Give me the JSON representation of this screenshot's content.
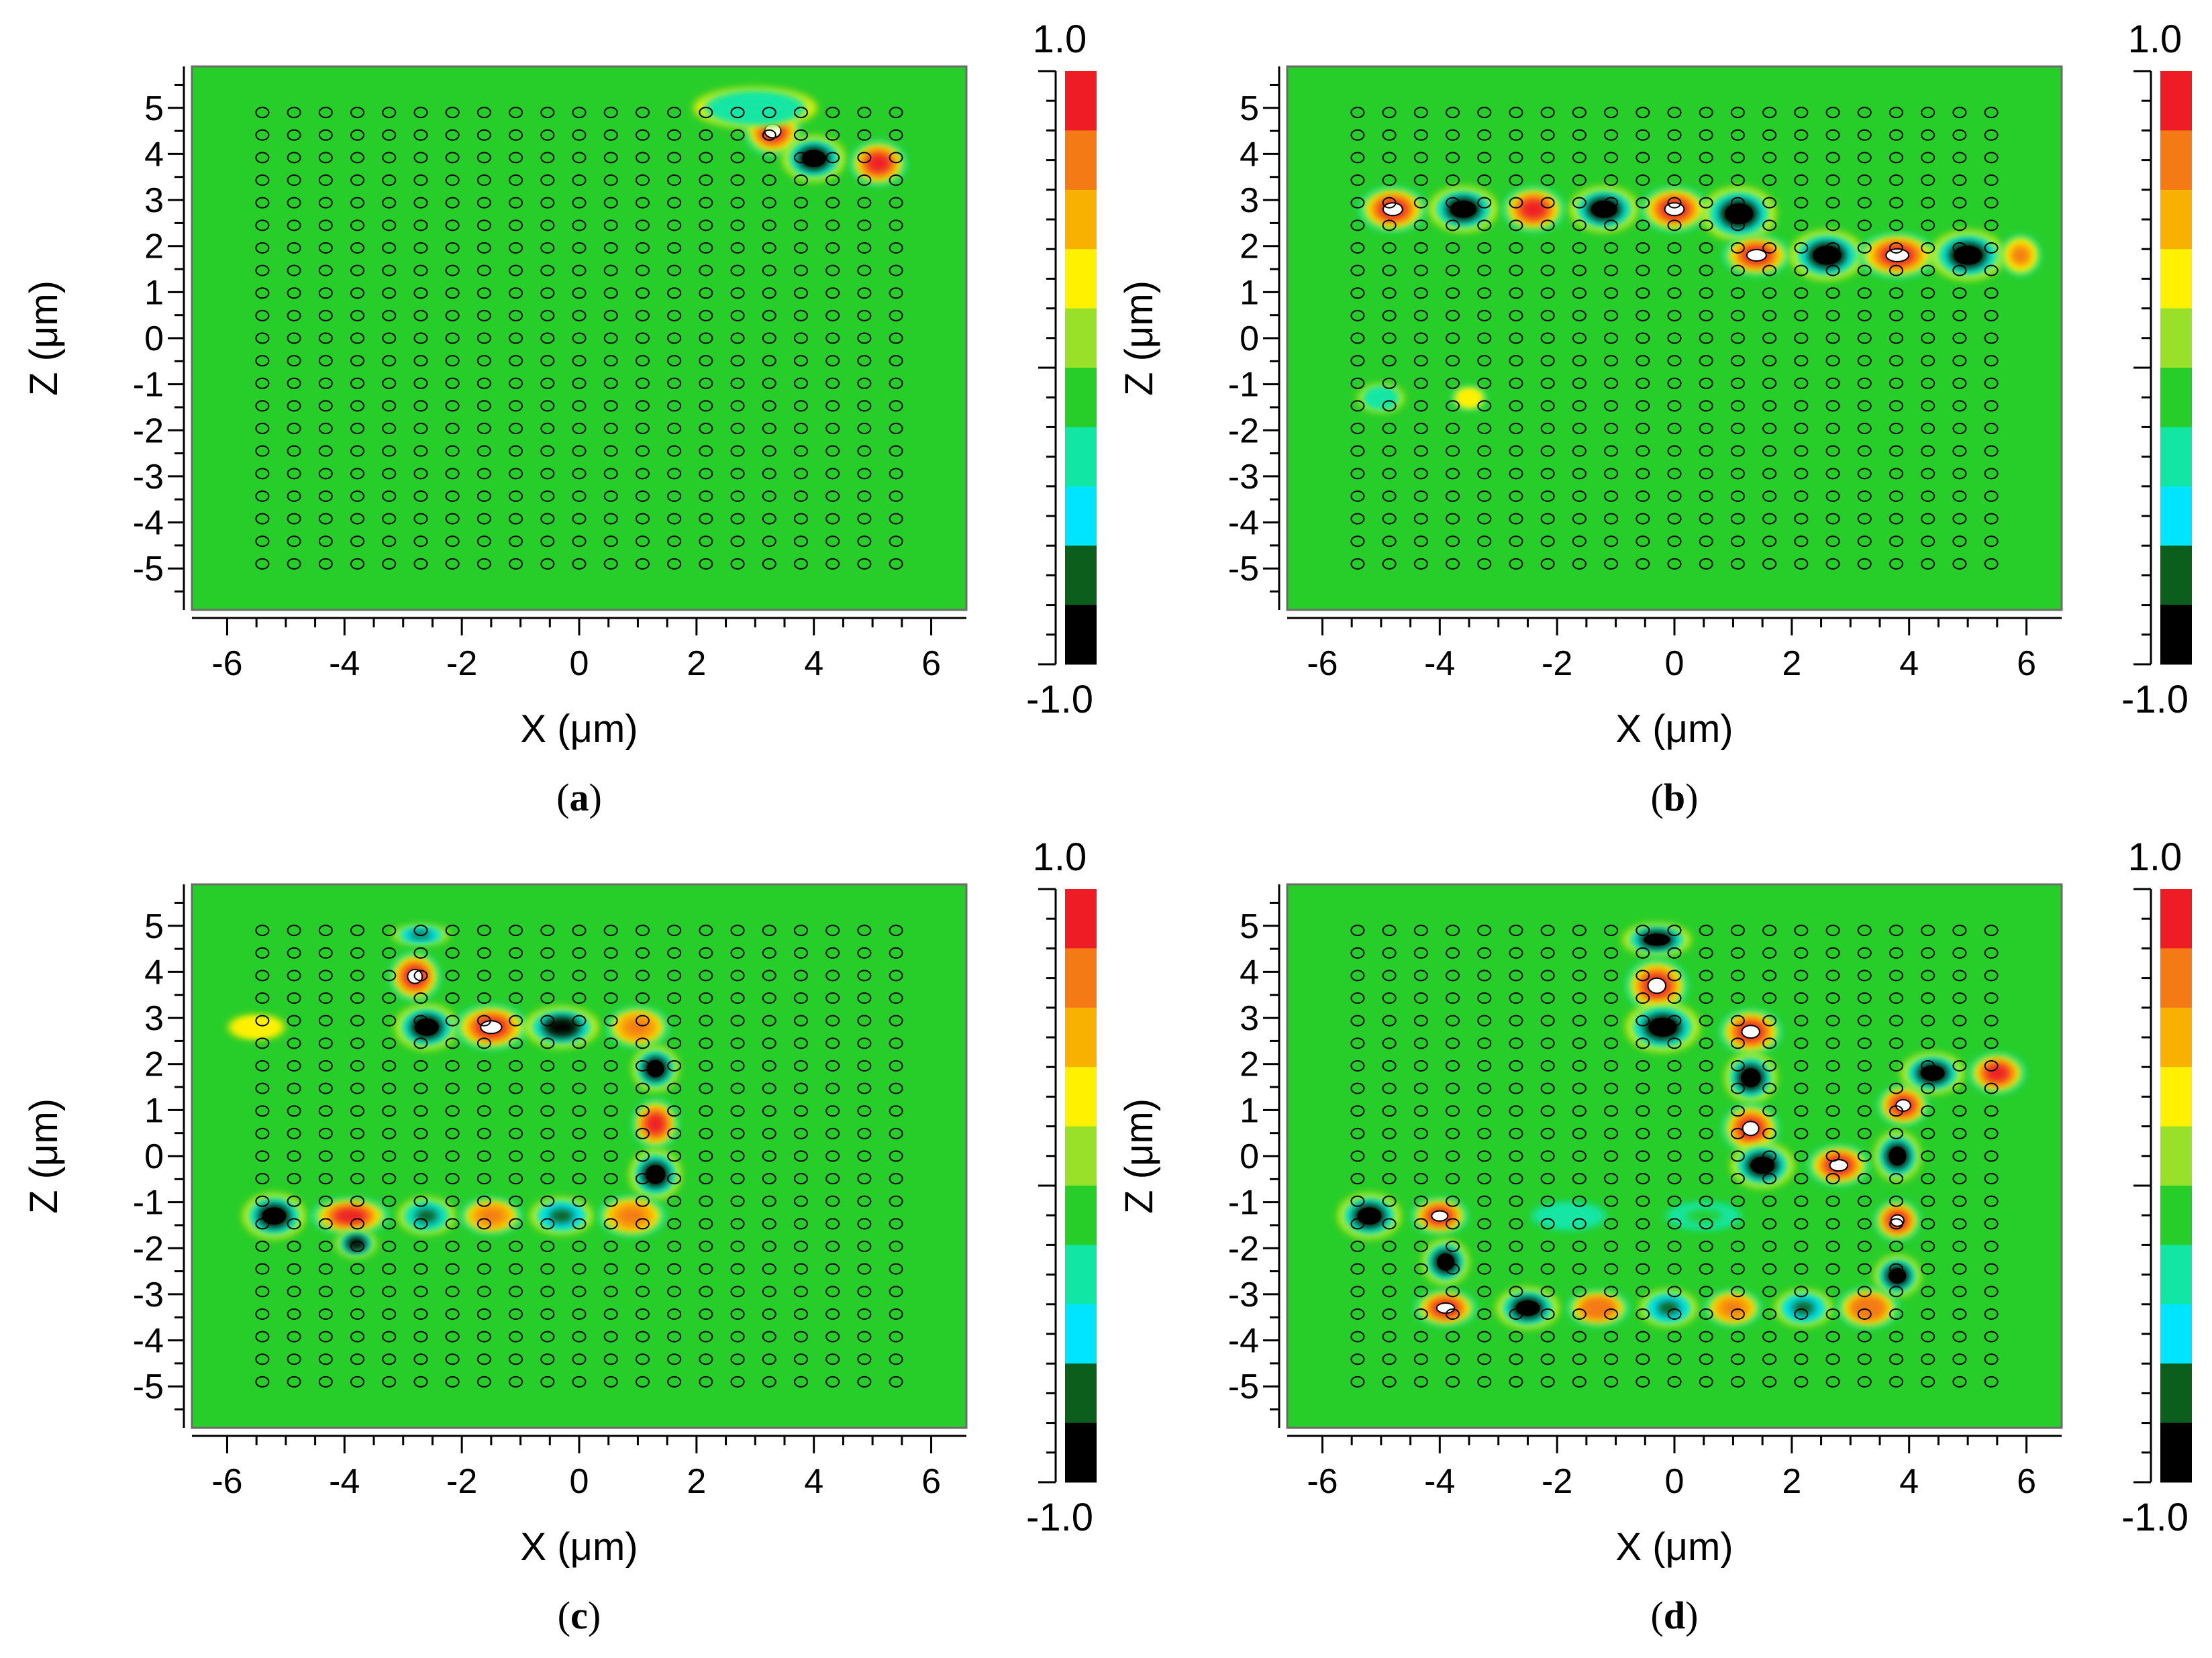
{
  "figure": {
    "panel_labels": [
      "a",
      "b",
      "c",
      "d"
    ],
    "colorbar": {
      "max_label": "1.0",
      "min_label": "-1.0",
      "colors": [
        "#ee1c25",
        "#f47a16",
        "#f9b100",
        "#fff100",
        "#99e02b",
        "#27cd29",
        "#12e6a4",
        "#00e5ff",
        "#0c5e1c",
        "#000000"
      ]
    },
    "background_color": "#27cd29"
  },
  "chart_data": [
    {
      "panel": "a",
      "type": "heatmap",
      "title": "",
      "xlabel": "X (μm)",
      "ylabel": "Z (μm)",
      "xlim": [
        -6.6,
        6.6
      ],
      "ylim": [
        -5.9,
        5.9
      ],
      "xticks": [
        "-6",
        "-4",
        "-2",
        "0",
        "2",
        "4",
        "6"
      ],
      "yticks": [
        "5",
        "4",
        "3",
        "2",
        "1",
        "0",
        "-1",
        "-2",
        "-3",
        "-4",
        "-5"
      ],
      "value_range": [
        -1.0,
        1.0
      ],
      "hotspots": [
        {
          "x": 3.3,
          "z": 4.5,
          "w": 0.5,
          "h": 0.55,
          "v": 1
        },
        {
          "x": 4.0,
          "z": 3.9,
          "w": 0.55,
          "h": 0.5,
          "v": -1
        },
        {
          "x": 5.1,
          "z": 3.8,
          "w": 0.5,
          "h": 0.5,
          "v": 0.9
        },
        {
          "x": 3.0,
          "z": 5.0,
          "w": 1.1,
          "h": 0.45,
          "v": -0.35
        }
      ]
    },
    {
      "panel": "b",
      "type": "heatmap",
      "title": "",
      "xlabel": "X (μm)",
      "ylabel": "Z (μm)",
      "xlim": [
        -6.6,
        6.6
      ],
      "ylim": [
        -5.9,
        5.9
      ],
      "xticks": [
        "-6",
        "-4",
        "-2",
        "0",
        "2",
        "4",
        "6"
      ],
      "yticks": [
        "5",
        "4",
        "3",
        "2",
        "1",
        "0",
        "-1",
        "-2",
        "-3",
        "-4",
        "-5"
      ],
      "value_range": [
        -1.0,
        1.0
      ],
      "hotspots": [
        {
          "x": -4.8,
          "z": 2.8,
          "w": 0.6,
          "h": 0.5,
          "v": 1
        },
        {
          "x": -3.6,
          "z": 2.8,
          "w": 0.6,
          "h": 0.5,
          "v": -1
        },
        {
          "x": -2.4,
          "z": 2.8,
          "w": 0.55,
          "h": 0.5,
          "v": 0.9
        },
        {
          "x": -1.2,
          "z": 2.8,
          "w": 0.6,
          "h": 0.5,
          "v": -1
        },
        {
          "x": 0.0,
          "z": 2.8,
          "w": 0.6,
          "h": 0.5,
          "v": 1
        },
        {
          "x": 1.1,
          "z": 2.7,
          "w": 0.65,
          "h": 0.6,
          "v": -1
        },
        {
          "x": 1.4,
          "z": 1.8,
          "w": 0.6,
          "h": 0.45,
          "v": 1
        },
        {
          "x": 2.6,
          "z": 1.8,
          "w": 0.65,
          "h": 0.55,
          "v": -1
        },
        {
          "x": 3.8,
          "z": 1.8,
          "w": 0.7,
          "h": 0.5,
          "v": 1
        },
        {
          "x": 5.0,
          "z": 1.8,
          "w": 0.65,
          "h": 0.55,
          "v": -1
        },
        {
          "x": 5.9,
          "z": 1.8,
          "w": 0.35,
          "h": 0.45,
          "v": 0.7
        },
        {
          "x": -5.0,
          "z": -1.3,
          "w": 0.4,
          "h": 0.3,
          "v": -0.4
        },
        {
          "x": -3.5,
          "z": -1.3,
          "w": 0.3,
          "h": 0.25,
          "v": 0.4
        }
      ]
    },
    {
      "panel": "c",
      "type": "heatmap",
      "title": "",
      "xlabel": "X (μm)",
      "ylabel": "Z (μm)",
      "xlim": [
        -6.6,
        6.6
      ],
      "ylim": [
        -5.9,
        5.9
      ],
      "xticks": [
        "-6",
        "-4",
        "-2",
        "0",
        "2",
        "4",
        "6"
      ],
      "yticks": [
        "5",
        "4",
        "3",
        "2",
        "1",
        "0",
        "-1",
        "-2",
        "-3",
        "-4",
        "-5"
      ],
      "value_range": [
        -1.0,
        1.0
      ],
      "hotspots": [
        {
          "x": -2.7,
          "z": 4.8,
          "w": 0.5,
          "h": 0.2,
          "v": -0.8
        },
        {
          "x": -2.8,
          "z": 3.9,
          "w": 0.45,
          "h": 0.55,
          "v": 1
        },
        {
          "x": -2.6,
          "z": 2.8,
          "w": 0.55,
          "h": 0.5,
          "v": -1
        },
        {
          "x": -1.5,
          "z": 2.8,
          "w": 0.65,
          "h": 0.5,
          "v": 1
        },
        {
          "x": -0.3,
          "z": 2.8,
          "w": 0.65,
          "h": 0.45,
          "v": -0.9
        },
        {
          "x": 1.0,
          "z": 2.8,
          "w": 0.55,
          "h": 0.45,
          "v": 0.8
        },
        {
          "x": 1.3,
          "z": 1.9,
          "w": 0.4,
          "h": 0.5,
          "v": -1
        },
        {
          "x": 1.3,
          "z": 0.7,
          "w": 0.4,
          "h": 0.55,
          "v": 0.9
        },
        {
          "x": 1.3,
          "z": -0.4,
          "w": 0.45,
          "h": 0.55,
          "v": -1
        },
        {
          "x": -5.2,
          "z": -1.3,
          "w": 0.55,
          "h": 0.5,
          "v": -1
        },
        {
          "x": -3.9,
          "z": -1.3,
          "w": 0.7,
          "h": 0.4,
          "v": 0.9
        },
        {
          "x": -2.6,
          "z": -1.3,
          "w": 0.5,
          "h": 0.4,
          "v": -0.7
        },
        {
          "x": -1.5,
          "z": -1.3,
          "w": 0.55,
          "h": 0.4,
          "v": 0.75
        },
        {
          "x": -0.3,
          "z": -1.3,
          "w": 0.55,
          "h": 0.4,
          "v": -0.8
        },
        {
          "x": 0.9,
          "z": -1.3,
          "w": 0.6,
          "h": 0.45,
          "v": 0.8
        },
        {
          "x": -3.8,
          "z": -1.9,
          "w": 0.35,
          "h": 0.3,
          "v": -0.9
        },
        {
          "x": -5.5,
          "z": 2.8,
          "w": 0.6,
          "h": 0.3,
          "v": 0.3
        }
      ]
    },
    {
      "panel": "d",
      "type": "heatmap",
      "title": "",
      "xlabel": "X (μm)",
      "ylabel": "Z (μm)",
      "xlim": [
        -6.6,
        6.6
      ],
      "ylim": [
        -5.9,
        5.9
      ],
      "xticks": [
        "-6",
        "-4",
        "-2",
        "0",
        "2",
        "4",
        "6"
      ],
      "yticks": [
        "5",
        "4",
        "3",
        "2",
        "1",
        "0",
        "-1",
        "-2",
        "-3",
        "-4",
        "-5"
      ],
      "value_range": [
        -1.0,
        1.0
      ],
      "hotspots": [
        {
          "x": -0.3,
          "z": 4.7,
          "w": 0.6,
          "h": 0.35,
          "v": -1
        },
        {
          "x": -0.3,
          "z": 3.7,
          "w": 0.55,
          "h": 0.6,
          "v": 1
        },
        {
          "x": -0.2,
          "z": 2.8,
          "w": 0.65,
          "h": 0.55,
          "v": -1
        },
        {
          "x": 1.3,
          "z": 2.7,
          "w": 0.55,
          "h": 0.5,
          "v": 1
        },
        {
          "x": 1.3,
          "z": 1.7,
          "w": 0.45,
          "h": 0.55,
          "v": -1
        },
        {
          "x": 1.3,
          "z": 0.6,
          "w": 0.5,
          "h": 0.55,
          "v": 1
        },
        {
          "x": 1.5,
          "z": -0.2,
          "w": 0.55,
          "h": 0.5,
          "v": -1
        },
        {
          "x": 2.8,
          "z": -0.2,
          "w": 0.55,
          "h": 0.45,
          "v": 1
        },
        {
          "x": 3.9,
          "z": 1.1,
          "w": 0.45,
          "h": 0.45,
          "v": 1
        },
        {
          "x": 4.4,
          "z": 1.8,
          "w": 0.55,
          "h": 0.45,
          "v": -1
        },
        {
          "x": 5.5,
          "z": 1.8,
          "w": 0.5,
          "h": 0.45,
          "v": 0.9
        },
        {
          "x": 3.8,
          "z": 0.0,
          "w": 0.4,
          "h": 0.55,
          "v": -1
        },
        {
          "x": 3.8,
          "z": -1.4,
          "w": 0.4,
          "h": 0.45,
          "v": 1
        },
        {
          "x": 3.8,
          "z": -2.6,
          "w": 0.4,
          "h": 0.45,
          "v": -1
        },
        {
          "x": -5.2,
          "z": -1.3,
          "w": 0.55,
          "h": 0.5,
          "v": -1
        },
        {
          "x": -4.0,
          "z": -1.3,
          "w": 0.5,
          "h": 0.4,
          "v": 1
        },
        {
          "x": -3.9,
          "z": -2.3,
          "w": 0.4,
          "h": 0.5,
          "v": -1
        },
        {
          "x": -3.9,
          "z": -3.3,
          "w": 0.55,
          "h": 0.4,
          "v": 1
        },
        {
          "x": -2.5,
          "z": -3.3,
          "w": 0.55,
          "h": 0.45,
          "v": -1
        },
        {
          "x": -1.3,
          "z": -3.3,
          "w": 0.55,
          "h": 0.4,
          "v": 0.85
        },
        {
          "x": -0.1,
          "z": -3.3,
          "w": 0.5,
          "h": 0.4,
          "v": -0.8
        },
        {
          "x": 1.0,
          "z": -3.3,
          "w": 0.5,
          "h": 0.4,
          "v": 0.8
        },
        {
          "x": 2.2,
          "z": -3.3,
          "w": 0.5,
          "h": 0.4,
          "v": -0.8
        },
        {
          "x": 3.3,
          "z": -3.3,
          "w": 0.55,
          "h": 0.45,
          "v": 0.85
        },
        {
          "x": -1.8,
          "z": -1.3,
          "w": 0.8,
          "h": 0.35,
          "v": -0.25
        },
        {
          "x": 0.5,
          "z": -1.3,
          "w": 0.8,
          "h": 0.35,
          "v": -0.2
        }
      ]
    }
  ]
}
